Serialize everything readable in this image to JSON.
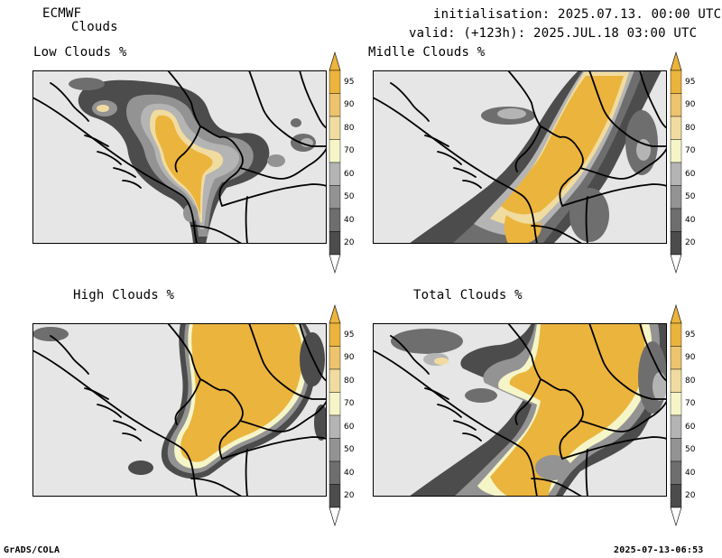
{
  "header": {
    "model": "ECMWF",
    "product": "Clouds",
    "initialisation": "initialisation: 2025.07.13. 00:00 UTC",
    "valid": "valid: (+123h): 2025.JUL.18 03:00 UTC"
  },
  "footer": {
    "left": "GrADS/COLA",
    "right": "2025-07-13-06:53"
  },
  "colors": {
    "land_bg": "#e6e6e6",
    "c20": "#4c4c4c",
    "c40": "#6e6e6e",
    "c50": "#939393",
    "c60": "#b4b4b4",
    "c70": "#f5f5c8",
    "c80": "#f0dca0",
    "c90": "#ecc46e",
    "c95": "#ebb43c",
    "border": "#000000"
  },
  "colorbar": {
    "levels": [
      "20",
      "40",
      "50",
      "60",
      "70",
      "80",
      "90",
      "95"
    ]
  },
  "panels": [
    {
      "id": "low",
      "title": "Low Clouds %"
    },
    {
      "id": "middle",
      "title": "Midlle Clouds %"
    },
    {
      "id": "high",
      "title": "High Clouds %"
    },
    {
      "id": "total",
      "title": "Total Clouds %"
    }
  ]
}
